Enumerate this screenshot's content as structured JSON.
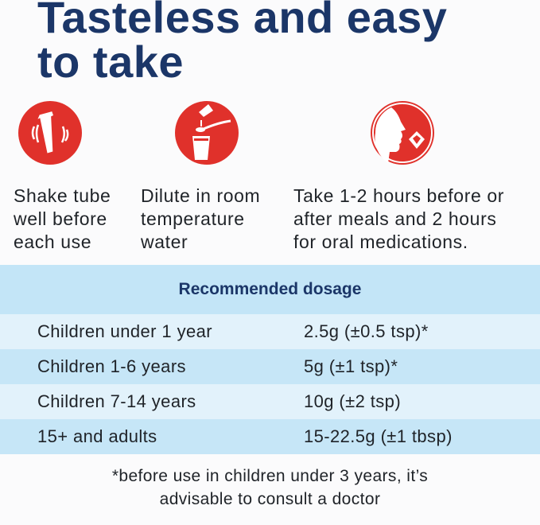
{
  "title_lines": [
    "Tasteless and easy",
    "to take"
  ],
  "steps": [
    {
      "icon": "shaking-tube-icon",
      "lines": [
        "Shake tube",
        "well before",
        "each use"
      ]
    },
    {
      "icon": "spoon-into-glass-icon",
      "lines": [
        "Dilute in room",
        "temperature",
        "water"
      ]
    },
    {
      "icon": "person-taking-dose-icon",
      "lines": [
        "Take 1-2 hours before or",
        "after meals and 2 hours",
        "for oral medications."
      ]
    }
  ],
  "dosage": {
    "header": "Recommended dosage",
    "rows": [
      {
        "group": "Children under 1 year",
        "dose": "2.5g (±0.5 tsp)*"
      },
      {
        "group": "Children 1-6 years",
        "dose": "5g (±1 tsp)*"
      },
      {
        "group": "Children 7-14 years",
        "dose": "10g (±2 tsp)"
      },
      {
        "group": "15+ and adults",
        "dose": "15-22.5g (±1 tbsp)"
      }
    ]
  },
  "footnote_lines": [
    "*before use in children under 3 years, it’s",
    "advisable to consult a doctor"
  ],
  "colors": {
    "title": "#1b3668",
    "icon_red": "#e0312b",
    "table_header": "#c3e5f7",
    "row_light": "#e2f2fb",
    "row_dark": "#c6e6f7"
  }
}
